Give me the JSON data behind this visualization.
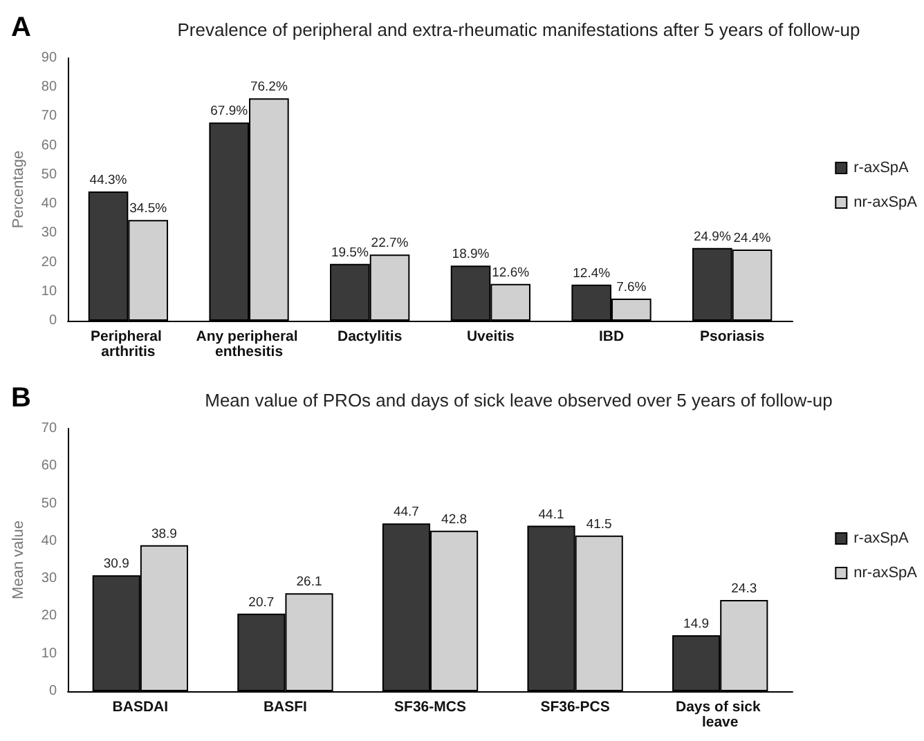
{
  "chart_data": [
    {
      "type": "bar",
      "title": "Prevalence of peripheral and extra-rheumatic manifestations after 5 years of follow-up",
      "ylabel": "Percentage",
      "annotations": [
        "A"
      ],
      "categories": [
        "Peripheral arthritis",
        "Any peripheral enthesitis",
        "Dactylitis",
        "Uveitis",
        "IBD",
        "Psoriasis"
      ],
      "series": [
        {
          "name": "r-axSpA",
          "color": "#3a3a3a",
          "values": [
            44.3,
            67.9,
            19.5,
            18.9,
            12.4,
            24.9
          ],
          "value_labels": [
            "44.3%",
            "67.9%",
            "19.5%",
            "18.9%",
            "12.4%",
            "24.9%"
          ]
        },
        {
          "name": "nr-axSpA",
          "color": "#d0d0d0",
          "values": [
            34.5,
            76.2,
            22.7,
            12.6,
            7.6,
            24.4
          ],
          "value_labels": [
            "34.5%",
            "76.2%",
            "22.7%",
            "12.6%",
            "7.6%",
            "24.4%"
          ]
        }
      ],
      "ylim": [
        0,
        90
      ],
      "yticks": [
        0,
        10,
        20,
        30,
        40,
        50,
        60,
        70,
        80,
        90
      ],
      "grid": false,
      "legend": "right"
    },
    {
      "type": "bar",
      "title": "Mean value of PROs and days of sick leave observed over 5 years of follow-up",
      "ylabel": "Mean value",
      "annotations": [
        "B"
      ],
      "categories": [
        "BASDAI",
        "BASFI",
        "SF36-MCS",
        "SF36-PCS",
        "Days of sick leave"
      ],
      "series": [
        {
          "name": "r-axSpA",
          "color": "#3a3a3a",
          "values": [
            30.9,
            20.7,
            44.7,
            44.1,
            14.9
          ]
        },
        {
          "name": "nr-axSpA",
          "color": "#d0d0d0",
          "values": [
            38.9,
            26.1,
            42.8,
            41.5,
            24.3
          ]
        }
      ],
      "ylim": [
        0,
        70
      ],
      "yticks": [
        0,
        10,
        20,
        30,
        40,
        50,
        60,
        70
      ],
      "grid": false,
      "legend": "right",
      "data_labels": true
    }
  ]
}
